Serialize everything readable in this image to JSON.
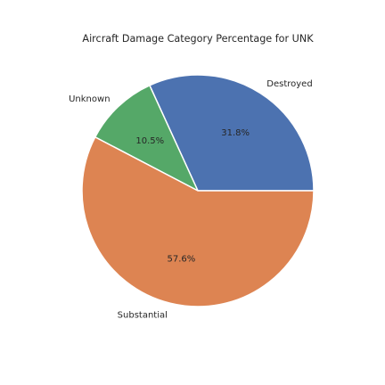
{
  "chart_data": {
    "type": "pie",
    "title": "Aircraft Damage Category Percentage for UNK",
    "categories": [
      "Destroyed",
      "Unknown",
      "Substantial"
    ],
    "values": [
      31.8,
      10.5,
      57.6
    ],
    "value_labels": [
      "31.8%",
      "10.5%",
      "57.6%"
    ],
    "colors": [
      "#4c72b0",
      "#55a868",
      "#dd8452"
    ],
    "start_angle_deg": 0,
    "direction": "counterclockwise"
  }
}
